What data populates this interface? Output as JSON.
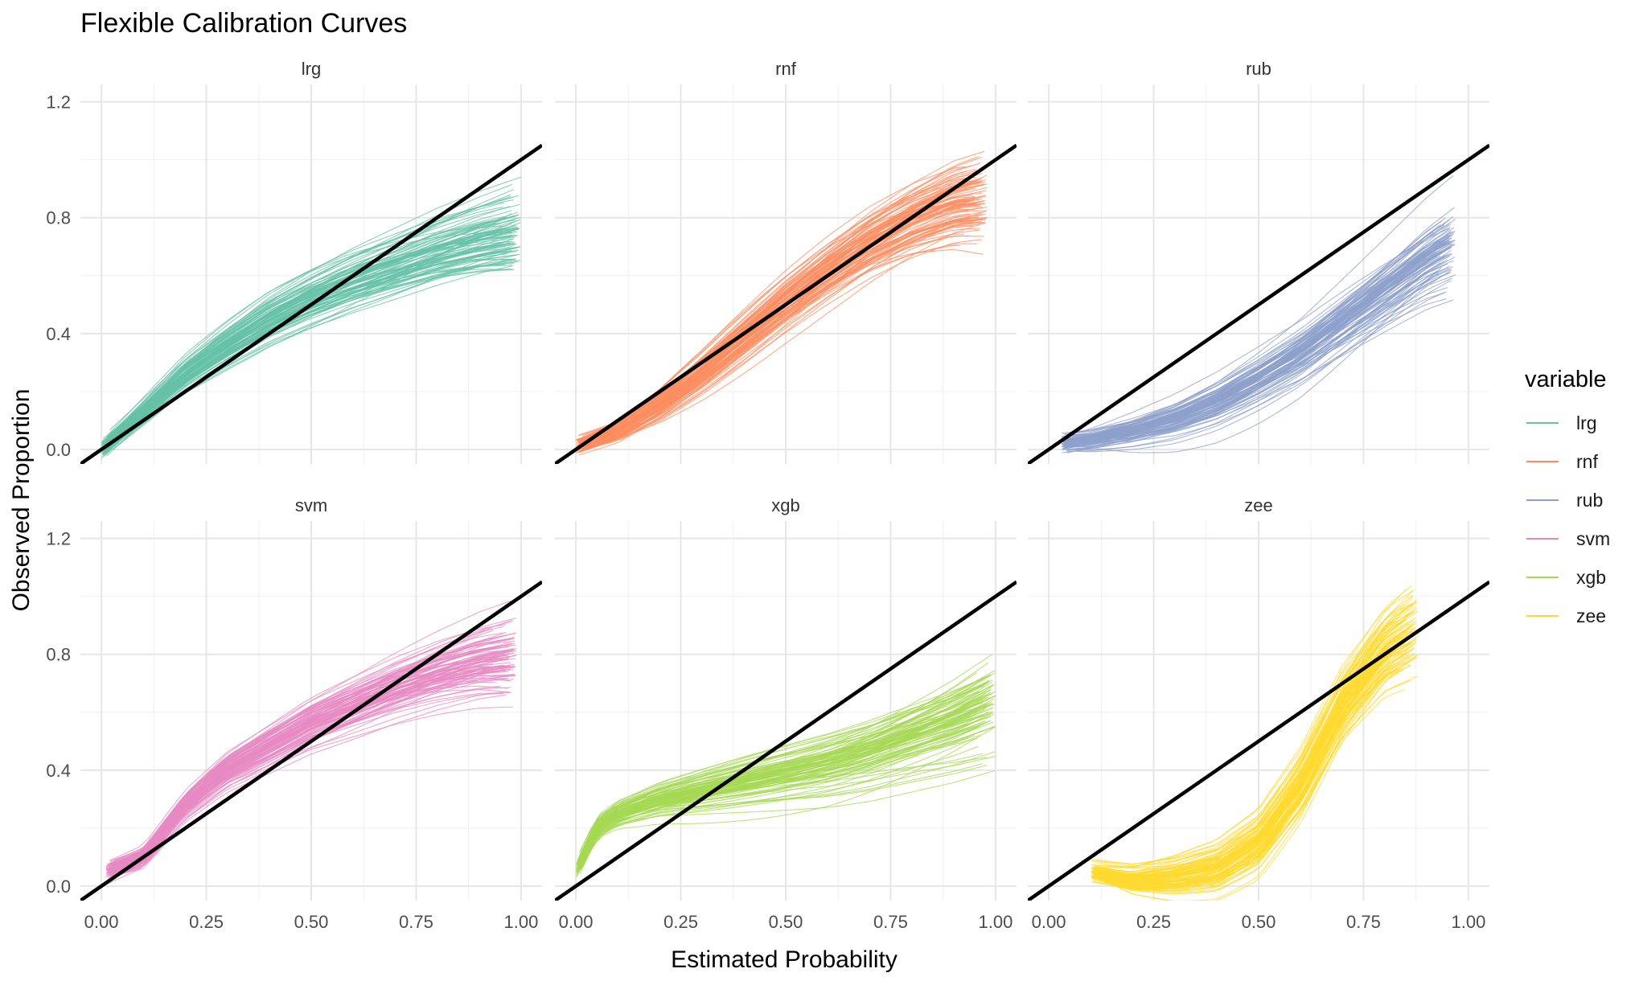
{
  "chart_data": {
    "type": "line",
    "title": "Flexible Calibration Curves",
    "xlabel": "Estimated Probability",
    "ylabel": "Observed Proportion",
    "xlim": [
      -0.05,
      1.05
    ],
    "ylim": [
      -0.05,
      1.26
    ],
    "x_ticks": [
      0,
      0.25,
      0.5,
      0.75,
      1
    ],
    "x_tick_labels": [
      "0.00",
      "0.25",
      "0.50",
      "0.75",
      "1.00"
    ],
    "y_ticks": [
      0,
      0.4,
      0.8,
      1.2
    ],
    "y_tick_labels": [
      "0.0",
      "0.4",
      "0.8",
      "1.2"
    ],
    "grid": true,
    "reference_line": {
      "slope": 1,
      "intercept": 0,
      "color": "#000000"
    },
    "legend": {
      "title": "variable",
      "position": "right",
      "entries": [
        "lrg",
        "rnf",
        "rub",
        "svm",
        "xgb",
        "zee"
      ]
    },
    "panels": [
      {
        "name": "lrg",
        "color": "#66c2a5",
        "n_curves": 100,
        "x": [
          0.0,
          0.1,
          0.2,
          0.3,
          0.4,
          0.5,
          0.6,
          0.7,
          0.8,
          0.9,
          1.0
        ],
        "y": [
          0.0,
          0.13,
          0.26,
          0.36,
          0.45,
          0.52,
          0.58,
          0.63,
          0.68,
          0.72,
          0.75
        ]
      },
      {
        "name": "rnf",
        "color": "#fc8d62",
        "n_curves": 100,
        "x": [
          0.0,
          0.1,
          0.2,
          0.3,
          0.4,
          0.5,
          0.6,
          0.7,
          0.8,
          0.9,
          0.98
        ],
        "y": [
          0.01,
          0.06,
          0.15,
          0.26,
          0.38,
          0.5,
          0.61,
          0.71,
          0.79,
          0.85,
          0.87
        ]
      },
      {
        "name": "rub",
        "color": "#8da0cb",
        "n_curves": 100,
        "x": [
          0.03,
          0.1,
          0.2,
          0.3,
          0.4,
          0.5,
          0.6,
          0.7,
          0.8,
          0.9,
          0.97
        ],
        "y": [
          0.02,
          0.03,
          0.06,
          0.1,
          0.16,
          0.24,
          0.33,
          0.44,
          0.55,
          0.66,
          0.72
        ]
      },
      {
        "name": "svm",
        "color": "#e78ac3",
        "n_curves": 100,
        "x": [
          0.01,
          0.1,
          0.2,
          0.3,
          0.4,
          0.5,
          0.6,
          0.7,
          0.8,
          0.9,
          0.99
        ],
        "y": [
          0.05,
          0.1,
          0.28,
          0.4,
          0.48,
          0.56,
          0.62,
          0.68,
          0.73,
          0.77,
          0.79
        ]
      },
      {
        "name": "xgb",
        "color": "#a6d854",
        "n_curves": 100,
        "x": [
          0.0,
          0.05,
          0.1,
          0.2,
          0.3,
          0.4,
          0.5,
          0.6,
          0.7,
          0.8,
          0.9,
          1.0
        ],
        "y": [
          0.05,
          0.2,
          0.25,
          0.3,
          0.33,
          0.36,
          0.39,
          0.42,
          0.46,
          0.51,
          0.56,
          0.62
        ]
      },
      {
        "name": "zee",
        "color": "#ffd92f",
        "n_curves": 100,
        "x": [
          0.1,
          0.2,
          0.3,
          0.4,
          0.5,
          0.6,
          0.7,
          0.8,
          0.88
        ],
        "y": [
          0.05,
          0.02,
          0.03,
          0.06,
          0.15,
          0.35,
          0.63,
          0.82,
          0.9
        ]
      }
    ]
  }
}
